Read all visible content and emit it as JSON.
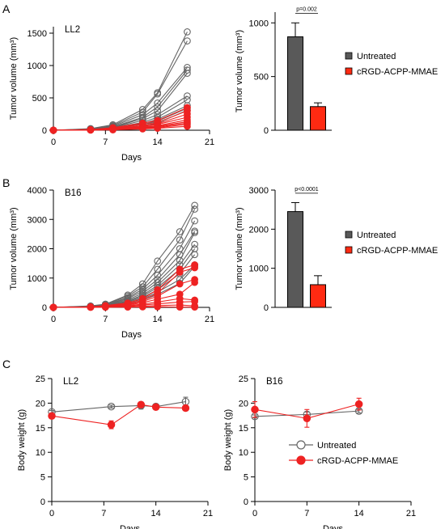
{
  "colors": {
    "untreated": "#666666",
    "treated": "#ee2222",
    "bar_untreated": "#595959",
    "bar_treated": "#ff2a12"
  },
  "legend": {
    "untreated": "Untreated",
    "treated": "cRGD-ACPP-MMAE"
  },
  "chart_data": [
    {
      "panel": "A",
      "type": "line",
      "subtitle": "LL2",
      "xlabel": "Days",
      "ylabel": "Tumor volume (mm³)",
      "xlim": [
        0,
        21
      ],
      "ylim": [
        0,
        1600
      ],
      "xticks": [
        0,
        7,
        14,
        21
      ],
      "yticks": [
        0,
        500,
        1000,
        1500
      ],
      "x": [
        0,
        5,
        8,
        12,
        14,
        18
      ],
      "series": [
        {
          "group": "untreated",
          "values": [
            0,
            25,
            85,
            320,
            580,
            1520
          ]
        },
        {
          "group": "untreated",
          "values": [
            0,
            20,
            70,
            280,
            560,
            1380
          ]
        },
        {
          "group": "untreated",
          "values": [
            0,
            15,
            60,
            240,
            420,
            970
          ]
        },
        {
          "group": "untreated",
          "values": [
            0,
            12,
            50,
            200,
            360,
            930
          ]
        },
        {
          "group": "untreated",
          "values": [
            0,
            10,
            45,
            180,
            300,
            880
          ]
        },
        {
          "group": "untreated",
          "values": [
            0,
            10,
            40,
            150,
            240,
            530
          ]
        },
        {
          "group": "untreated",
          "values": [
            0,
            8,
            35,
            120,
            200,
            470
          ]
        },
        {
          "group": "untreated",
          "values": [
            0,
            8,
            30,
            100,
            170,
            380
          ]
        },
        {
          "group": "untreated",
          "values": [
            0,
            6,
            25,
            90,
            140,
            340
          ]
        },
        {
          "group": "untreated",
          "values": [
            0,
            5,
            20,
            70,
            110,
            310
          ]
        },
        {
          "group": "treated",
          "values": [
            0,
            10,
            40,
            110,
            150,
            350
          ]
        },
        {
          "group": "treated",
          "values": [
            0,
            8,
            30,
            90,
            120,
            300
          ]
        },
        {
          "group": "treated",
          "values": [
            0,
            6,
            25,
            70,
            100,
            250
          ]
        },
        {
          "group": "treated",
          "values": [
            0,
            5,
            20,
            60,
            90,
            200
          ]
        },
        {
          "group": "treated",
          "values": [
            0,
            5,
            15,
            50,
            70,
            160
          ]
        },
        {
          "group": "treated",
          "values": [
            0,
            4,
            12,
            40,
            60,
            130
          ]
        },
        {
          "group": "treated",
          "values": [
            0,
            3,
            10,
            35,
            50,
            110
          ]
        },
        {
          "group": "treated",
          "values": [
            0,
            3,
            8,
            30,
            40,
            90
          ]
        },
        {
          "group": "treated",
          "values": [
            0,
            2,
            6,
            20,
            30,
            60
          ]
        }
      ]
    },
    {
      "panel": "A",
      "type": "bar",
      "ylabel": "Tumor volume (mm³)",
      "ylim": [
        0,
        1100
      ],
      "yticks": [
        0,
        500,
        1000
      ],
      "values": [
        870,
        220
      ],
      "errors": [
        130,
        35
      ],
      "annotation": "p=0.002"
    },
    {
      "panel": "B",
      "type": "line",
      "subtitle": "B16",
      "xlabel": "Days",
      "ylabel": "Tumor volume (mm³)",
      "xlim": [
        0,
        21
      ],
      "ylim": [
        0,
        4000
      ],
      "xticks": [
        0,
        7,
        14,
        21
      ],
      "yticks": [
        0,
        1000,
        2000,
        3000,
        4000
      ],
      "x": [
        0,
        5,
        7,
        10,
        12,
        14,
        17,
        19
      ],
      "series": [
        {
          "group": "untreated",
          "values": [
            0,
            50,
            110,
            420,
            800,
            1580,
            2580,
            3480
          ]
        },
        {
          "group": "untreated",
          "values": [
            0,
            40,
            100,
            380,
            700,
            1300,
            2300,
            3350
          ]
        },
        {
          "group": "untreated",
          "values": [
            0,
            35,
            90,
            330,
            620,
            1100,
            2000,
            2950
          ]
        },
        {
          "group": "untreated",
          "values": [
            0,
            30,
            80,
            300,
            550,
            950,
            1800,
            2600
          ]
        },
        {
          "group": "untreated",
          "values": [
            0,
            25,
            70,
            260,
            480,
            850,
            1600,
            2550
          ]
        },
        {
          "group": "untreated",
          "values": [
            0,
            20,
            60,
            220,
            420,
            750,
            1450,
            2150
          ]
        },
        {
          "group": "untreated",
          "values": [
            0,
            18,
            55,
            200,
            380,
            680,
            1300,
            2000
          ]
        },
        {
          "group": "untreated",
          "values": [
            0,
            15,
            50,
            180,
            330,
            600,
            1150,
            1800
          ]
        },
        {
          "group": "untreated",
          "values": [
            0,
            12,
            45,
            150,
            280,
            520,
            950,
            1450
          ]
        },
        {
          "group": "untreated",
          "values": [
            0,
            10,
            40,
            120,
            240,
            440,
            820,
            1400
          ]
        },
        {
          "group": "treated",
          "values": [
            0,
            20,
            60,
            150,
            300,
            600,
            1300,
            1450
          ]
        },
        {
          "group": "treated",
          "values": [
            0,
            15,
            50,
            120,
            240,
            480,
            1200,
            1350
          ]
        },
        {
          "group": "treated",
          "values": [
            0,
            12,
            40,
            100,
            200,
            380,
            800,
            950
          ]
        },
        {
          "group": "treated",
          "values": [
            0,
            10,
            30,
            80,
            160,
            280,
            450,
            850
          ]
        },
        {
          "group": "treated",
          "values": [
            0,
            8,
            20,
            60,
            110,
            180,
            300,
            250
          ]
        },
        {
          "group": "treated",
          "values": [
            0,
            5,
            15,
            40,
            80,
            120,
            180,
            200
          ]
        },
        {
          "group": "treated",
          "values": [
            0,
            3,
            10,
            20,
            40,
            60,
            80,
            50
          ]
        },
        {
          "group": "treated",
          "values": [
            0,
            2,
            5,
            10,
            15,
            20,
            10,
            10
          ]
        }
      ]
    },
    {
      "panel": "B",
      "type": "bar",
      "ylabel": "Tumor volume (mm³)",
      "ylim": [
        0,
        3000
      ],
      "yticks": [
        0,
        1000,
        2000,
        3000
      ],
      "values": [
        2450,
        580
      ],
      "errors": [
        230,
        230
      ],
      "annotation": "p<0.0001"
    },
    {
      "panel": "C",
      "type": "line",
      "subtitle": "LL2",
      "xlabel": "Days",
      "ylabel": "Body weight (g)",
      "xlim": [
        0,
        21
      ],
      "ylim": [
        0,
        25
      ],
      "xticks": [
        0,
        7,
        14,
        21
      ],
      "yticks": [
        0,
        5,
        10,
        15,
        20,
        25
      ],
      "series": [
        {
          "group": "untreated",
          "x": [
            0,
            8,
            12,
            14,
            18
          ],
          "values": [
            18.2,
            19.3,
            19.5,
            19.3,
            20.3
          ],
          "errors": [
            0.3,
            0.3,
            0.7,
            0.4,
            0.9
          ]
        },
        {
          "group": "treated",
          "x": [
            0,
            8,
            12,
            14,
            18
          ],
          "values": [
            17.4,
            15.6,
            19.7,
            19.2,
            19.0
          ],
          "errors": [
            0.4,
            0.8,
            0.5,
            0.4,
            0.4
          ]
        }
      ]
    },
    {
      "panel": "C",
      "type": "line",
      "subtitle": "B16",
      "xlabel": "Days",
      "ylabel": "Body weight (g)",
      "xlim": [
        0,
        21
      ],
      "ylim": [
        0,
        25
      ],
      "xticks": [
        0,
        7,
        14,
        21
      ],
      "yticks": [
        0,
        5,
        10,
        15,
        20,
        25
      ],
      "series": [
        {
          "group": "untreated",
          "x": [
            0,
            7,
            14
          ],
          "values": [
            17.3,
            17.7,
            18.4
          ],
          "errors": [
            0.3,
            0.5,
            0.4
          ]
        },
        {
          "group": "treated",
          "x": [
            0,
            7,
            14
          ],
          "values": [
            18.7,
            16.9,
            19.8
          ],
          "errors": [
            1.6,
            1.8,
            1.2
          ]
        }
      ]
    }
  ]
}
